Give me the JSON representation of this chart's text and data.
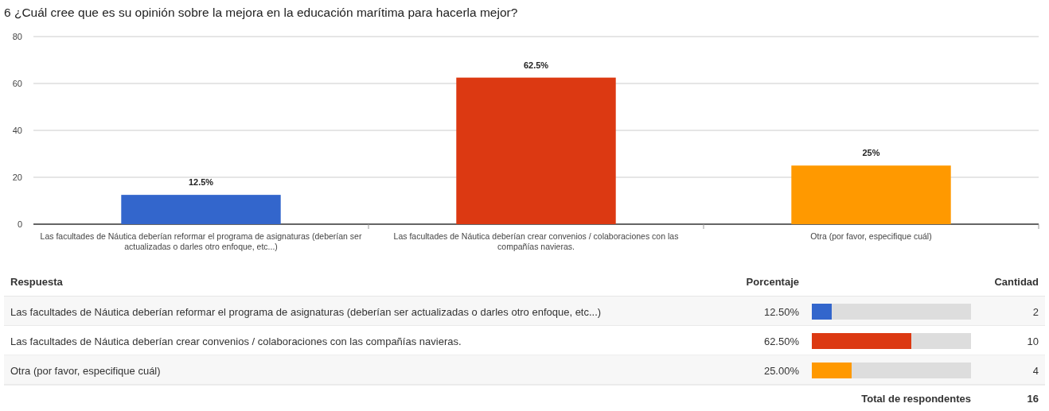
{
  "chart_data": [
    {
      "type": "bar",
      "title": "6 ¿Cuál cree que es su opinión sobre la mejora en la educación marítima para hacerla mejor?",
      "categories": [
        "Las facultades de Náutica deberían reformar el programa de asignaturas (deberían ser actualizadas o darles otro enfoque, etc...)",
        "Las facultades de Náutica deberían crear convenios / colaboraciones con las compañías navieras.",
        "Otra (por favor, especifique cuál)"
      ],
      "values": [
        12.5,
        62.5,
        25
      ],
      "colors": [
        "#3366cc",
        "#dc3912",
        "#ff9900"
      ],
      "value_labels": [
        "12.5%",
        "62.5%",
        "25%"
      ],
      "ylim": [
        0,
        80
      ],
      "yticks": [
        0,
        20,
        40,
        60,
        80
      ],
      "grid": "y"
    },
    {
      "type": "bar",
      "orientation": "horizontal",
      "categories": [
        "Las facultades de Náutica deberían reformar el programa de asignaturas (deberían ser actualizadas o darles otro enfoque, etc...)",
        "Las facultades de Náutica deberían crear convenios / colaboraciones con las compañías navieras.",
        "Otra (por favor, especifique cuál)"
      ],
      "values": [
        12.5,
        62.5,
        25
      ],
      "colors": [
        "#3366cc",
        "#dc3912",
        "#ff9900"
      ],
      "value_labels": [
        "12.50%",
        "62.50%",
        "25.00%"
      ],
      "xlim": [
        0,
        100
      ],
      "tick_labels": false,
      "annotations": [
        "Respuesta",
        "Porcentaje",
        "Cantidad",
        "2",
        "10",
        "4",
        "Total de respondentes",
        "16"
      ]
    }
  ]
}
